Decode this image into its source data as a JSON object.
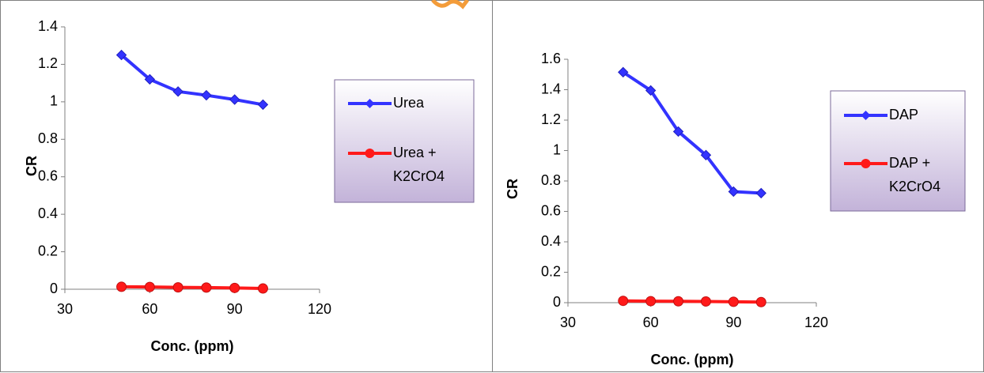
{
  "chart_data": [
    {
      "type": "line",
      "title": "",
      "xlabel": "Conc. (ppm)",
      "ylabel": "CR",
      "xlim": [
        30,
        120
      ],
      "ylim": [
        0,
        1.4
      ],
      "xticks": [
        "30",
        "60",
        "90",
        "120"
      ],
      "yticks": [
        "0",
        "0.2",
        "0.4",
        "0.6",
        "0.8",
        "1",
        "1.2",
        "1.4"
      ],
      "x": [
        50,
        60,
        70,
        80,
        90,
        100
      ],
      "legend_position": "right",
      "series": [
        {
          "name": "Urea",
          "values": [
            1.25,
            1.12,
            1.055,
            1.035,
            1.012,
            0.985
          ],
          "color": "#3333ff",
          "marker": "diamond"
        },
        {
          "name": "Urea + K2CrO4",
          "values": [
            0.013,
            0.012,
            0.01,
            0.009,
            0.007,
            0.004
          ],
          "color": "#ff1a1a",
          "marker": "circle"
        }
      ],
      "legend_lines": [
        [
          "Urea"
        ],
        [
          "Urea +",
          "K2CrO4"
        ]
      ]
    },
    {
      "type": "line",
      "title": "",
      "xlabel": "Conc. (ppm)",
      "ylabel": "CR",
      "xlim": [
        30,
        120
      ],
      "ylim": [
        0,
        1.6
      ],
      "xticks": [
        "30",
        "60",
        "90",
        "120"
      ],
      "yticks": [
        "0",
        "0.2",
        "0.4",
        "0.6",
        "0.8",
        "1",
        "1.2",
        "1.4",
        "1.6"
      ],
      "x": [
        50,
        60,
        70,
        80,
        90,
        100
      ],
      "legend_position": "right",
      "series": [
        {
          "name": "DAP",
          "values": [
            1.515,
            1.395,
            1.125,
            0.97,
            0.73,
            0.72
          ],
          "color": "#3333ff",
          "marker": "diamond"
        },
        {
          "name": "DAP + K2CrO4",
          "values": [
            0.012,
            0.01,
            0.009,
            0.008,
            0.006,
            0.004
          ],
          "color": "#ff1a1a",
          "marker": "circle"
        }
      ],
      "legend_lines": [
        [
          "DAP"
        ],
        [
          "DAP +",
          "K2CrO4"
        ]
      ]
    }
  ],
  "colors": {
    "legend_fill_top": "#ffffff",
    "legend_fill_bottom": "#c3b3d9",
    "legend_border": "#7b6a9a",
    "axis": "#808080"
  }
}
